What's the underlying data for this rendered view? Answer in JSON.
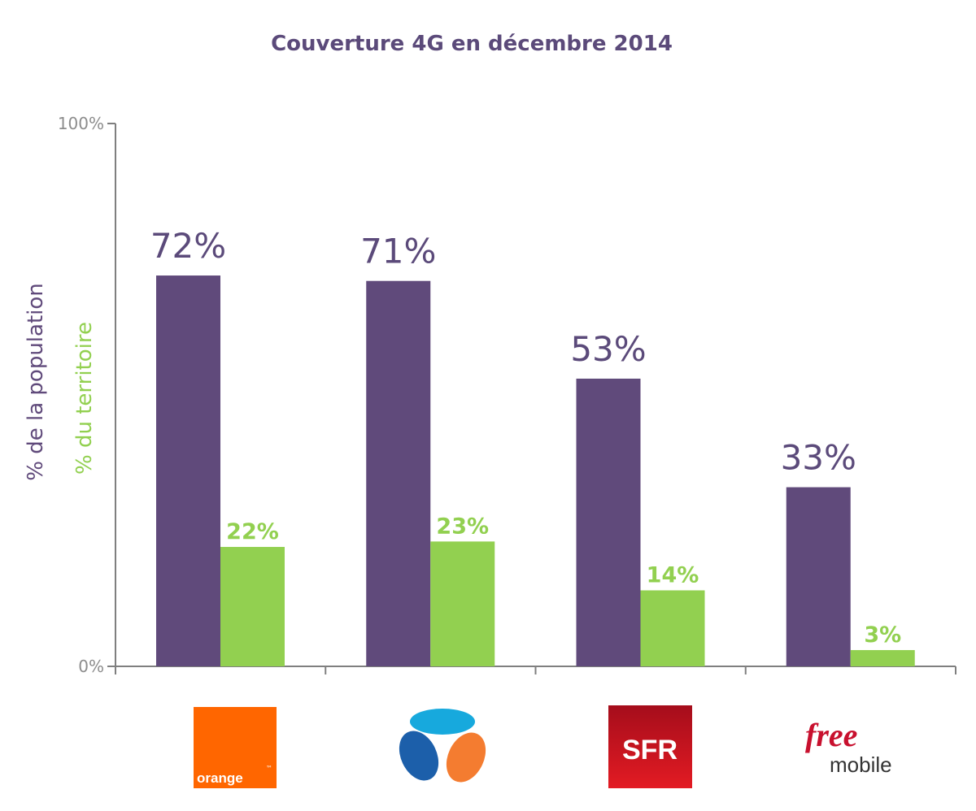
{
  "chart_data": {
    "type": "bar",
    "title": "Couverture 4G en décembre 2014",
    "categories": [
      "Orange",
      "Bouygues Telecom",
      "SFR",
      "Free mobile"
    ],
    "series": [
      {
        "name": "% de la population",
        "values": [
          72,
          71,
          53,
          33
        ],
        "labels": [
          "72%",
          "71%",
          "53%",
          "33%"
        ]
      },
      {
        "name": "% du territoire",
        "values": [
          22,
          23,
          14,
          3
        ],
        "labels": [
          "22%",
          "23%",
          "14%",
          "3%"
        ]
      }
    ],
    "ylim": [
      0,
      100
    ],
    "y_ticks": [
      {
        "value": 0,
        "label": "0%"
      },
      {
        "value": 100,
        "label": "100%"
      }
    ],
    "grid": false,
    "legend": "left, rotated axis labels",
    "colors": {
      "population": "#604a7b",
      "territoire": "#92d050",
      "title": "#5b4a7a",
      "axis": "#7f7f7f"
    }
  },
  "logos": {
    "orange": {
      "text": "orange",
      "trademark": "™",
      "color": "#ff6600"
    },
    "bouygues": {
      "icon": "bouygues-telecom-logo-icon",
      "colors": [
        "#17a9dd",
        "#1c5faa",
        "#f47c30"
      ]
    },
    "sfr": {
      "text": "SFR",
      "color": "#d0021b"
    },
    "free": {
      "text_top": "free",
      "text_bottom": "mobile",
      "color": "#c8102e"
    }
  }
}
